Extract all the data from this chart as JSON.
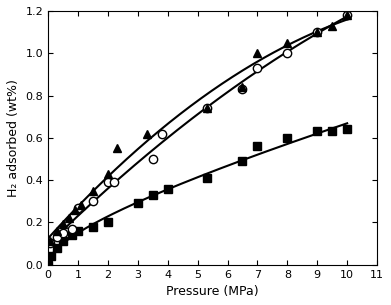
{
  "title": "",
  "xlabel": "Pressure (MPa)",
  "ylabel": "H₂ adsorbed (wt%)",
  "xlim": [
    0,
    11.0
  ],
  "ylim": [
    0,
    1.2
  ],
  "xticks": [
    0.0,
    1.0,
    2.0,
    3.0,
    4.0,
    5.0,
    6.0,
    7.0,
    8.0,
    9.0,
    10.0,
    11.0
  ],
  "yticks": [
    0.0,
    0.2,
    0.4,
    0.6,
    0.8,
    1.0,
    1.2
  ],
  "pure_ax21_x": [
    0.0,
    0.1,
    0.3,
    0.5,
    0.8,
    1.0,
    1.5,
    2.0,
    3.0,
    3.5,
    4.0,
    5.3,
    6.5,
    7.0,
    8.0,
    9.0,
    9.5,
    10.0
  ],
  "pure_ax21_y": [
    0.0,
    0.04,
    0.08,
    0.11,
    0.14,
    0.16,
    0.18,
    0.2,
    0.29,
    0.33,
    0.36,
    0.41,
    0.49,
    0.56,
    0.6,
    0.63,
    0.63,
    0.64
  ],
  "adsorption_x": [
    0.05,
    0.3,
    0.5,
    0.8,
    1.0,
    1.5,
    2.0,
    2.2,
    3.5,
    3.8,
    5.3,
    6.5,
    7.0,
    8.0,
    9.0,
    10.0
  ],
  "adsorption_y": [
    0.1,
    0.13,
    0.15,
    0.17,
    0.27,
    0.3,
    0.39,
    0.39,
    0.5,
    0.62,
    0.74,
    0.83,
    0.93,
    1.0,
    1.1,
    1.18
  ],
  "desorption_x": [
    0.05,
    0.3,
    0.5,
    0.7,
    0.9,
    1.1,
    1.5,
    2.0,
    2.3,
    3.3,
    5.3,
    6.5,
    7.0,
    8.0,
    9.0,
    9.5,
    10.0
  ],
  "desorption_y": [
    0.11,
    0.16,
    0.19,
    0.22,
    0.26,
    0.28,
    0.35,
    0.43,
    0.55,
    0.62,
    0.74,
    0.84,
    1.0,
    1.05,
    1.1,
    1.13,
    1.18
  ],
  "line_color": "#000000",
  "marker_size_sq": 6,
  "marker_size_circ": 6,
  "marker_size_tri": 6,
  "linewidth": 1.5
}
